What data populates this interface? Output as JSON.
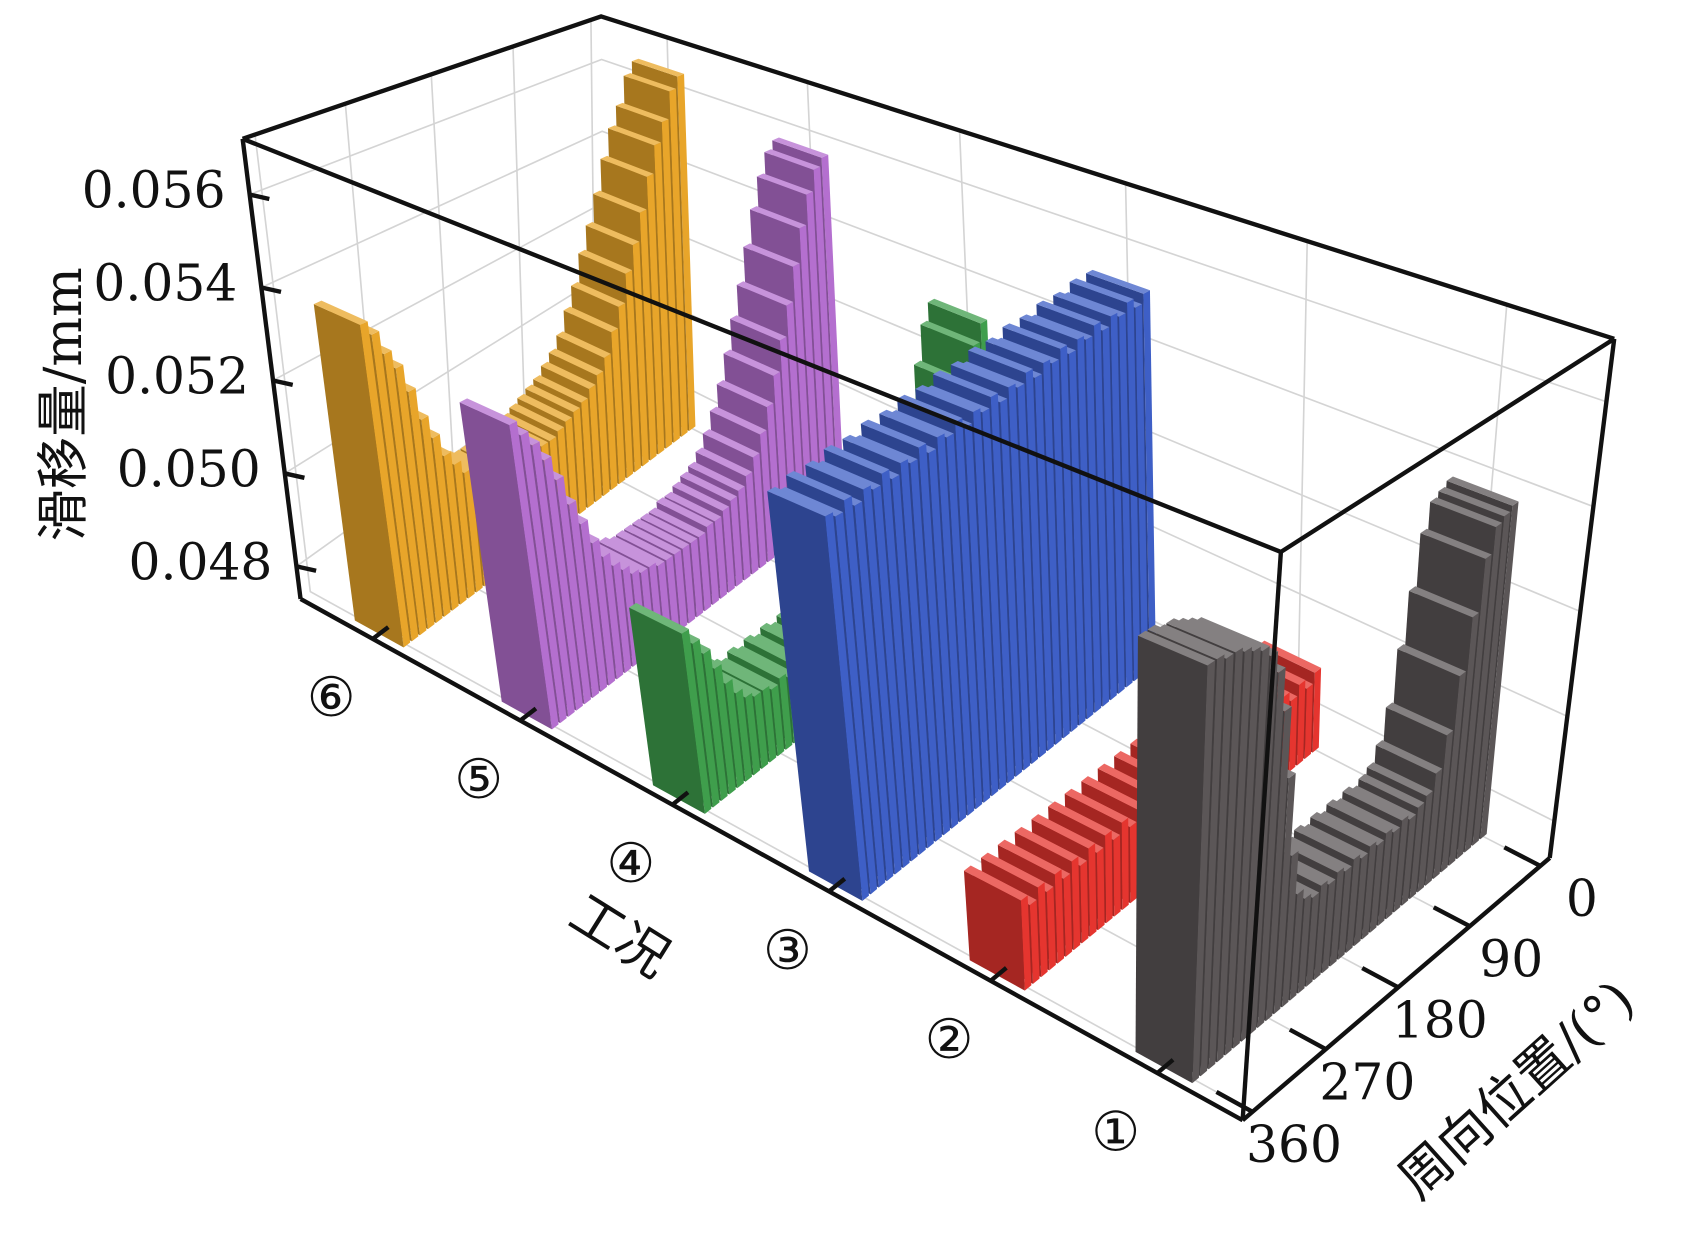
{
  "chart_data": {
    "type": "bar3d",
    "z_label": "滑移量/mm",
    "category_label": "工况",
    "x_label": "周向位置/(°)",
    "categories": [
      "①",
      "②",
      "③",
      "④",
      "⑤",
      "⑥"
    ],
    "x": [
      0,
      10,
      20,
      30,
      40,
      50,
      60,
      70,
      80,
      90,
      100,
      110,
      120,
      130,
      140,
      150,
      160,
      170,
      180,
      190,
      200,
      210,
      220,
      230,
      240,
      250,
      260,
      270,
      280,
      290,
      300,
      310,
      320,
      330,
      340,
      350,
      360
    ],
    "xlim": [
      -12,
      372
    ],
    "xticks": [
      0,
      90,
      180,
      270,
      360
    ],
    "zlim": [
      0.0473,
      0.0572
    ],
    "zticks": [
      0.048,
      {
        "value": 0.05,
        "label": "0.050"
      },
      0.052,
      0.054,
      0.056
    ],
    "grid": true,
    "series": [
      {
        "color": "#5b5657",
        "values": [
          0.0537,
          0.0536,
          0.0535,
          0.053,
          0.052,
          0.051,
          0.05,
          0.0494,
          0.0491,
          0.049,
          0.0489,
          0.049,
          0.0489,
          0.049,
          0.0489,
          0.049,
          0.0489,
          0.049,
          0.0489,
          0.049,
          0.0489,
          0.049,
          0.0489,
          0.049,
          0.0492,
          0.05,
          0.0515,
          0.0528,
          0.0536,
          0.054,
          0.0542,
          0.0543,
          0.0544,
          0.0545,
          0.0545,
          0.0546,
          0.0546
        ]
      },
      {
        "color": "#e5352f",
        "values": [
          0.0489,
          0.0487,
          0.0489,
          0.0487,
          0.0489,
          0.0487,
          0.0489,
          0.0487,
          0.0489,
          0.0487,
          0.0489,
          0.0487,
          0.0489,
          0.0487,
          0.0489,
          0.0487,
          0.0489,
          0.0487,
          0.0489,
          0.0487,
          0.0489,
          0.0487,
          0.0489,
          0.0487,
          0.0489,
          0.0487,
          0.0489,
          0.0487,
          0.0489,
          0.0487,
          0.0489,
          0.0487,
          0.0489,
          0.0487,
          0.0489,
          0.0487,
          0.0489
        ]
      },
      {
        "color": "#3e5fc6",
        "values": [
          0.0552,
          0.055,
          0.0552,
          0.055,
          0.0551,
          0.0549,
          0.0551,
          0.0549,
          0.055,
          0.0548,
          0.055,
          0.0548,
          0.0549,
          0.0547,
          0.0549,
          0.0547,
          0.0548,
          0.0546,
          0.0548,
          0.0546,
          0.0547,
          0.0545,
          0.0547,
          0.0545,
          0.0546,
          0.0544,
          0.0546,
          0.0544,
          0.0545,
          0.0543,
          0.0545,
          0.0543,
          0.0544,
          0.0542,
          0.0544,
          0.0542,
          0.0543
        ]
      },
      {
        "color": "#3f9e4c",
        "values": [
          0.0532,
          0.0528,
          0.052,
          0.051,
          0.05,
          0.0494,
          0.049,
          0.0488,
          0.0487,
          0.0486,
          0.0487,
          0.0486,
          0.0487,
          0.0486,
          0.0487,
          0.0486,
          0.0487,
          0.0486,
          0.0487,
          0.0486,
          0.0487,
          0.0486,
          0.0487,
          0.0486,
          0.0487,
          0.0486,
          0.0487,
          0.0486,
          0.0487,
          0.0487,
          0.0488,
          0.049,
          0.0493,
          0.0497,
          0.0501,
          0.0504,
          0.0507
        ]
      },
      {
        "color": "#b46fcf",
        "values": [
          0.0557,
          0.0555,
          0.055,
          0.0543,
          0.0535,
          0.0527,
          0.052,
          0.0513,
          0.0507,
          0.0502,
          0.0498,
          0.0495,
          0.0493,
          0.0492,
          0.0491,
          0.049,
          0.049,
          0.0489,
          0.0489,
          0.0489,
          0.0489,
          0.0489,
          0.0489,
          0.049,
          0.049,
          0.0491,
          0.0493,
          0.0495,
          0.0498,
          0.0502,
          0.0507,
          0.0512,
          0.0518,
          0.0523,
          0.0527,
          0.053,
          0.0533
        ]
      },
      {
        "color": "#e8a52a",
        "values": [
          0.0565,
          0.0562,
          0.0555,
          0.055,
          0.0543,
          0.0535,
          0.0528,
          0.0522,
          0.0515,
          0.051,
          0.0505,
          0.0502,
          0.05,
          0.0498,
          0.0497,
          0.0496,
          0.0495,
          0.0494,
          0.0494,
          0.0493,
          0.0493,
          0.0493,
          0.0493,
          0.0493,
          0.0494,
          0.0495,
          0.0497,
          0.0499,
          0.0502,
          0.0505,
          0.051,
          0.0515,
          0.0522,
          0.0528,
          0.0532,
          0.0537,
          0.054
        ]
      }
    ]
  }
}
